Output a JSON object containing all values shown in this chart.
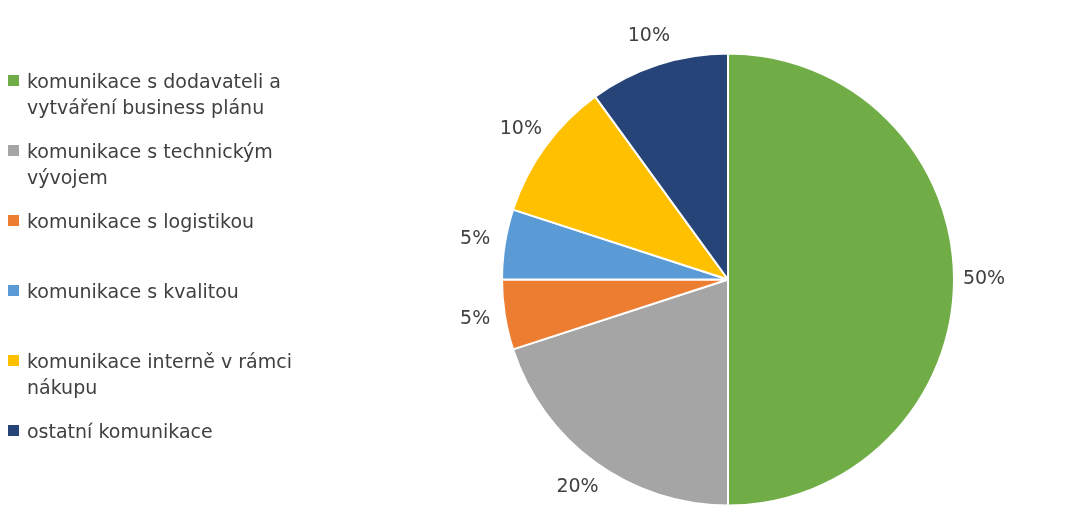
{
  "chart_data": {
    "type": "pie",
    "categories": [
      "komunikace s dodavateli a vytváření business plánu",
      "komunikace s technickým vývojem",
      "komunikace s logistikou",
      "komunikace s kvalitou",
      "komunikace interně v rámci nákupu",
      "ostatní komunikace"
    ],
    "values": [
      50,
      20,
      5,
      5,
      10,
      10
    ],
    "colors": [
      "#70ad47",
      "#a5a5a5",
      "#ed7d31",
      "#5b9bd5",
      "#ffc000",
      "#264478"
    ],
    "value_labels": [
      "50%",
      "20%",
      "5%",
      "5%",
      "10%",
      "10%"
    ],
    "legend": "left"
  }
}
